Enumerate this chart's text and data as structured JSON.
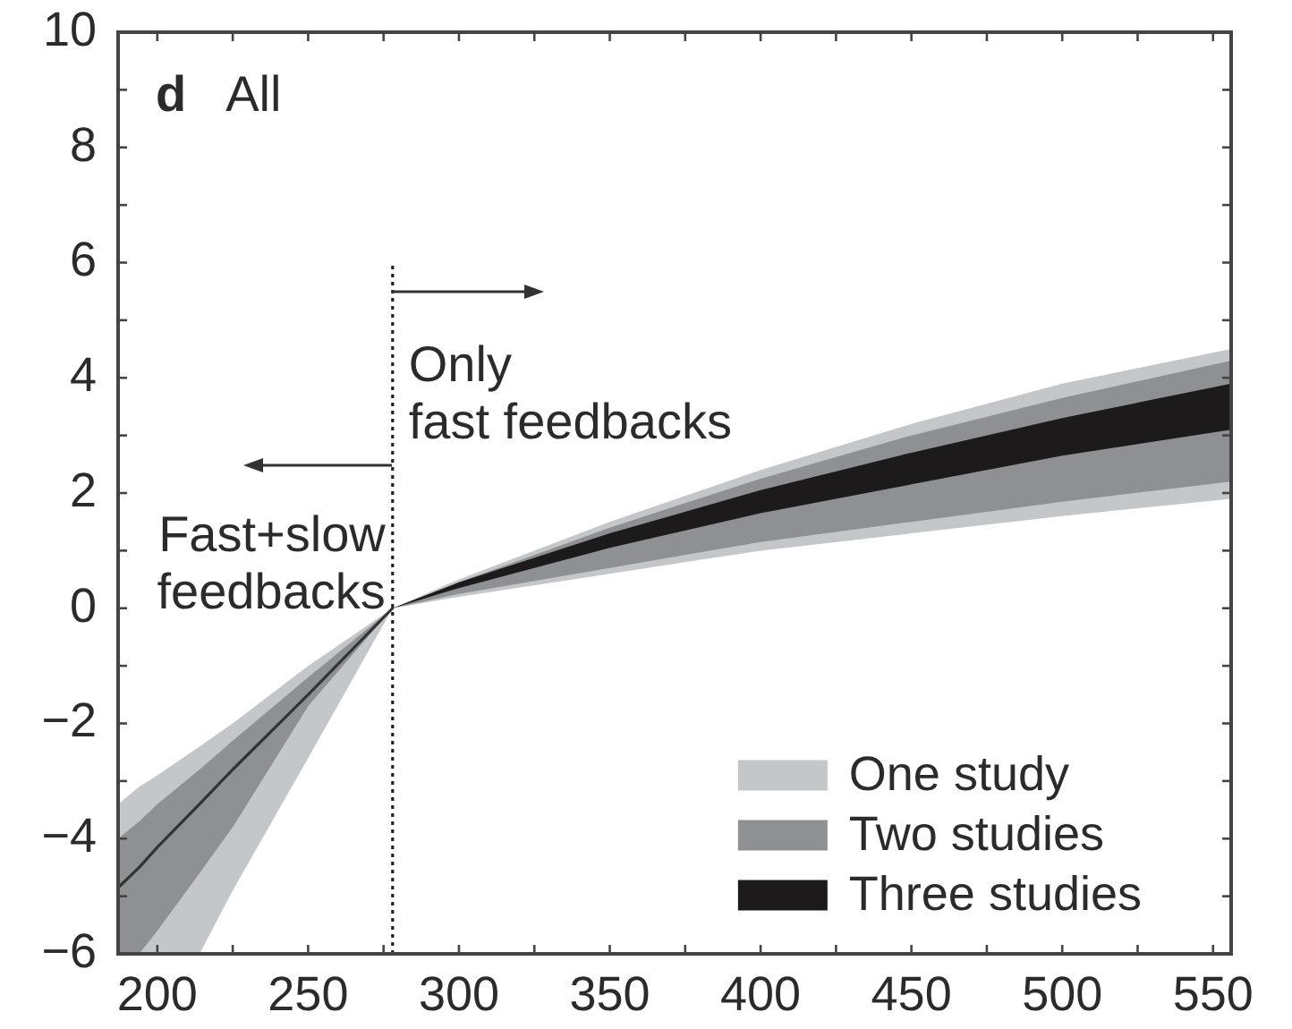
{
  "chart_data": {
    "type": "area",
    "annotations": [
      "d",
      "All",
      "Only\nfast feedbacks",
      "Fast+slow\nfeedbacks"
    ],
    "x": [
      187,
      194,
      200,
      214,
      225,
      250,
      278,
      300,
      350,
      400,
      450,
      500,
      556
    ],
    "series": [
      {
        "name": "One study",
        "color": "#c4c7ca",
        "values": [
          null,
          null,
          null,
          null,
          null,
          null,
          null,
          null,
          null,
          null,
          null,
          null,
          null
        ],
        "lower": [
          -6,
          -6,
          -6,
          -6,
          -4.9,
          -2.6,
          0,
          0.2,
          0.6,
          1,
          1.3,
          1.6,
          1.9
        ],
        "upper": [
          -3.4,
          -3.1,
          -2.9,
          -2.4,
          -2,
          -1,
          0,
          0.5,
          1.5,
          2.4,
          3.2,
          3.9,
          4.5
        ]
      },
      {
        "name": "Two studies",
        "color": "#8e9093",
        "values": [
          null,
          null,
          null,
          null,
          null,
          null,
          null,
          null,
          null,
          null,
          null,
          null,
          null
        ],
        "lower": [
          -6,
          -6,
          -5.6,
          -4.6,
          -3.8,
          -1.7,
          0,
          0.25,
          0.7,
          1.15,
          1.5,
          1.85,
          2.2
        ],
        "upper": [
          -4,
          -3.7,
          -3.4,
          -2.8,
          -2.3,
          -1.2,
          0,
          0.45,
          1.4,
          2.25,
          3,
          3.65,
          4.3
        ]
      },
      {
        "name": "Three studies",
        "color": "#1c1a1b",
        "values": [
          null,
          null,
          null,
          null,
          null,
          null,
          null,
          null,
          null,
          null,
          null,
          null,
          null
        ],
        "lower": [
          null,
          null,
          null,
          null,
          null,
          null,
          0,
          0.35,
          1.05,
          1.65,
          2.15,
          2.65,
          3.1
        ],
        "upper": [
          null,
          null,
          null,
          null,
          null,
          null,
          0,
          0.45,
          1.3,
          2.05,
          2.7,
          3.3,
          3.9
        ]
      },
      {
        "type": "line",
        "color": "#333333",
        "x": [
          187,
          194,
          200,
          214,
          225,
          250,
          278
        ],
        "values": [
          -4.85,
          -4.5,
          -4.15,
          -3.4,
          -2.8,
          -1.5,
          0
        ]
      }
    ],
    "xlim": [
      187,
      556
    ],
    "ylim": [
      -6,
      10
    ],
    "xticks": [
      200,
      {
        "value": 225,
        "label": null
      },
      250,
      {
        "value": 275,
        "label": null
      },
      300,
      {
        "value": 325,
        "label": null
      },
      350,
      {
        "value": 375,
        "label": null
      },
      400,
      {
        "value": 425,
        "label": null
      },
      450,
      {
        "value": 475,
        "label": null
      },
      500,
      {
        "value": 525,
        "label": null
      },
      550
    ],
    "yticks": [
      -6,
      {
        "value": -5,
        "label": null
      },
      -4,
      {
        "value": -3,
        "label": null
      },
      -2,
      {
        "value": -1,
        "label": null
      },
      0,
      {
        "value": 1,
        "label": null
      },
      2,
      {
        "value": 3,
        "label": null
      },
      4,
      {
        "value": 5,
        "label": null
      },
      6,
      {
        "value": 7,
        "label": null
      },
      8,
      {
        "value": 9,
        "label": null
      },
      10
    ],
    "ref_lines": [
      {
        "axis": "x",
        "value": 278,
        "line_style": "dotted",
        "color": "#222222"
      }
    ],
    "legend": "bottom right",
    "grid": false
  }
}
